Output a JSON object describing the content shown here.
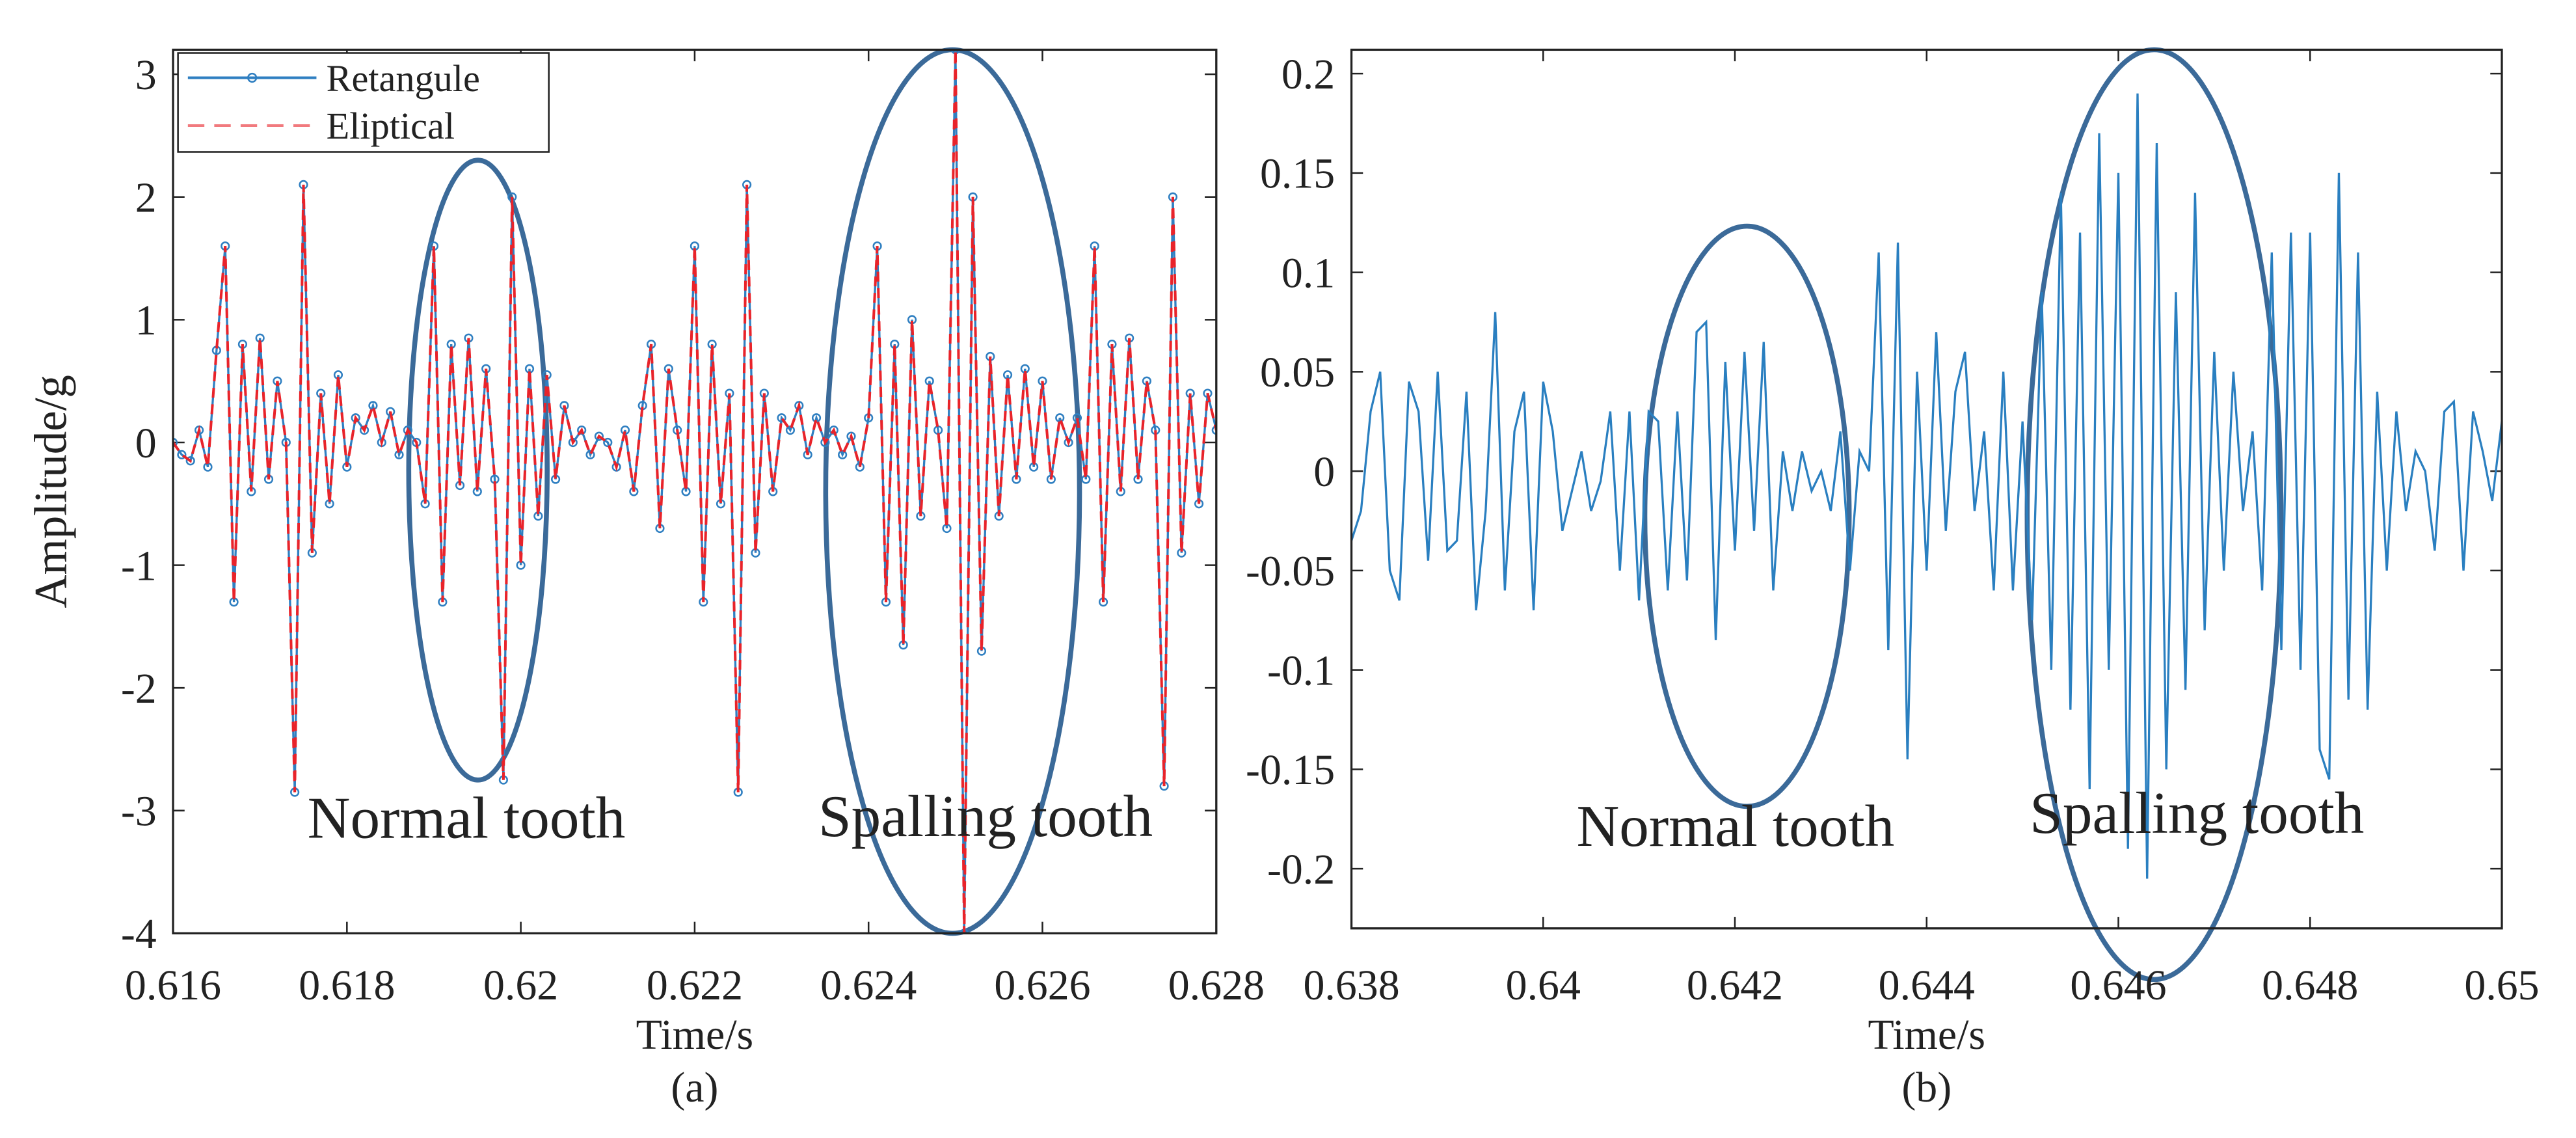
{
  "chart_data": [
    {
      "type": "line",
      "xlabel": "Time/s",
      "ylabel": "Amplitude/g",
      "caption": "(a)",
      "annotations": [
        "Normal tooth",
        "Spalling tooth"
      ],
      "legend": "upper left",
      "xlim": [
        0.616,
        0.628
      ],
      "xticks": [
        0.616,
        0.618,
        0.62,
        0.622,
        0.624,
        0.626,
        0.628
      ],
      "ylim": [
        -4,
        3.2
      ],
      "yticks": [
        -4,
        -3,
        -2,
        -1,
        0,
        1,
        2,
        3
      ],
      "x": [
        0.616,
        0.6161,
        0.6162,
        0.6163,
        0.6164,
        0.6165,
        0.6166,
        0.6167,
        0.6168,
        0.6169,
        0.617,
        0.6171,
        0.6172,
        0.6173,
        0.6174,
        0.6175,
        0.6176,
        0.6177,
        0.6178,
        0.6179,
        0.618,
        0.6181,
        0.6182,
        0.6183,
        0.6184,
        0.6185,
        0.6186,
        0.6187,
        0.6188,
        0.6189,
        0.619,
        0.6191,
        0.6192,
        0.6193,
        0.6194,
        0.6195,
        0.6196,
        0.6197,
        0.6198,
        0.6199,
        0.62,
        0.6201,
        0.6202,
        0.6203,
        0.6204,
        0.6205,
        0.6206,
        0.6207,
        0.6208,
        0.6209,
        0.621,
        0.6211,
        0.6212,
        0.6213,
        0.6214,
        0.6215,
        0.6216,
        0.6217,
        0.6218,
        0.6219,
        0.622,
        0.6221,
        0.6222,
        0.6223,
        0.6224,
        0.6225,
        0.6226,
        0.6227,
        0.6228,
        0.6229,
        0.623,
        0.6231,
        0.6232,
        0.6233,
        0.6234,
        0.6235,
        0.6236,
        0.6237,
        0.6238,
        0.6239,
        0.624,
        0.6241,
        0.6242,
        0.6243,
        0.6244,
        0.6245,
        0.6246,
        0.6247,
        0.6248,
        0.6249,
        0.625,
        0.6251,
        0.6252,
        0.6253,
        0.6254,
        0.6255,
        0.6256,
        0.6257,
        0.6258,
        0.6259,
        0.626,
        0.6261,
        0.6262,
        0.6263,
        0.6264,
        0.6265,
        0.6266,
        0.6267,
        0.6268,
        0.6269,
        0.627,
        0.6271,
        0.6272,
        0.6273,
        0.6274,
        0.6275,
        0.6276,
        0.6277,
        0.6278,
        0.6279,
        0.628
      ],
      "series": [
        {
          "name": "Retangule",
          "color": "#2f7fc1",
          "marker": "circle",
          "values": [
            0,
            -0.1,
            -0.15,
            0.1,
            -0.2,
            0.75,
            1.6,
            -1.3,
            0.8,
            -0.4,
            0.85,
            -0.3,
            0.5,
            0,
            -2.85,
            2.1,
            -0.9,
            0.4,
            -0.5,
            0.55,
            -0.2,
            0.2,
            0.1,
            0.3,
            0,
            0.25,
            -0.1,
            0.1,
            0,
            -0.5,
            1.6,
            -1.3,
            0.8,
            -0.35,
            0.85,
            -0.4,
            0.6,
            -0.3,
            -2.75,
            2.0,
            -1.0,
            0.6,
            -0.6,
            0.55,
            -0.3,
            0.3,
            0,
            0.1,
            -0.1,
            0.05,
            0,
            -0.2,
            0.1,
            -0.4,
            0.3,
            0.8,
            -0.7,
            0.6,
            0.1,
            -0.4,
            1.6,
            -1.3,
            0.8,
            -0.5,
            0.4,
            -2.85,
            2.1,
            -0.9,
            0.4,
            -0.4,
            0.2,
            0.1,
            0.3,
            -0.1,
            0.2,
            0,
            0.1,
            -0.1,
            0.05,
            -0.2,
            0.2,
            1.6,
            -1.3,
            0.8,
            -1.65,
            1.0,
            -0.6,
            0.5,
            0.1,
            -0.7,
            3.2,
            -4.0,
            2.0,
            -1.7,
            0.7,
            -0.6,
            0.55,
            -0.3,
            0.6,
            -0.2,
            0.5,
            -0.3,
            0.2,
            0,
            0.2,
            -0.3,
            1.6,
            -1.3,
            0.8,
            -0.4,
            0.85,
            -0.3,
            0.5,
            0.1,
            -2.8,
            2.0,
            -0.9,
            0.4,
            -0.5,
            0.4,
            0.1
          ]
        },
        {
          "name": "Eliptical",
          "color": "#e8232a",
          "dash": true,
          "values": [
            0,
            -0.1,
            -0.15,
            0.1,
            -0.2,
            0.75,
            1.6,
            -1.3,
            0.8,
            -0.4,
            0.85,
            -0.3,
            0.5,
            0,
            -2.85,
            2.1,
            -0.9,
            0.4,
            -0.5,
            0.55,
            -0.2,
            0.2,
            0.1,
            0.3,
            0,
            0.25,
            -0.1,
            0.1,
            0,
            -0.5,
            1.6,
            -1.3,
            0.8,
            -0.35,
            0.85,
            -0.4,
            0.6,
            -0.3,
            -2.75,
            2.0,
            -1.0,
            0.6,
            -0.6,
            0.55,
            -0.3,
            0.3,
            0,
            0.1,
            -0.1,
            0.05,
            0,
            -0.2,
            0.1,
            -0.4,
            0.3,
            0.8,
            -0.7,
            0.6,
            0.1,
            -0.4,
            1.6,
            -1.3,
            0.8,
            -0.5,
            0.4,
            -2.85,
            2.1,
            -0.9,
            0.4,
            -0.4,
            0.2,
            0.1,
            0.3,
            -0.1,
            0.2,
            0,
            0.1,
            -0.1,
            0.05,
            -0.2,
            0.2,
            1.6,
            -1.3,
            0.8,
            -1.65,
            1.0,
            -0.6,
            0.5,
            0.1,
            -0.7,
            3.2,
            -4.0,
            2.0,
            -1.7,
            0.7,
            -0.6,
            0.55,
            -0.3,
            0.6,
            -0.2,
            0.5,
            -0.3,
            0.2,
            0,
            0.2,
            -0.3,
            1.6,
            -1.3,
            0.8,
            -0.4,
            0.85,
            -0.3,
            0.5,
            0.1,
            -2.8,
            2.0,
            -0.9,
            0.4,
            -0.5,
            0.4,
            0.1
          ]
        }
      ]
    },
    {
      "type": "line",
      "xlabel": "Time/s",
      "caption": "(b)",
      "annotations": [
        "Normal tooth",
        "Spalling tooth"
      ],
      "xlim": [
        0.638,
        0.65
      ],
      "xticks": [
        0.638,
        0.64,
        0.642,
        0.644,
        0.646,
        0.648,
        0.65
      ],
      "ylim": [
        -0.23,
        0.212
      ],
      "yticks": [
        -0.2,
        -0.15,
        -0.1,
        -0.05,
        0,
        0.05,
        0.1,
        0.15,
        0.2
      ],
      "x": [
        0.638,
        0.6381,
        0.6382,
        0.6383,
        0.6384,
        0.6385,
        0.6386,
        0.6387,
        0.6388,
        0.6389,
        0.639,
        0.6391,
        0.6392,
        0.6393,
        0.6394,
        0.6395,
        0.6396,
        0.6397,
        0.6398,
        0.6399,
        0.64,
        0.6401,
        0.6402,
        0.6403,
        0.6404,
        0.6405,
        0.6406,
        0.6407,
        0.6408,
        0.6409,
        0.641,
        0.6411,
        0.6412,
        0.6413,
        0.6414,
        0.6415,
        0.6416,
        0.6417,
        0.6418,
        0.6419,
        0.642,
        0.6421,
        0.6422,
        0.6423,
        0.6424,
        0.6425,
        0.6426,
        0.6427,
        0.6428,
        0.6429,
        0.643,
        0.6431,
        0.6432,
        0.6433,
        0.6434,
        0.6435,
        0.6436,
        0.6437,
        0.6438,
        0.6439,
        0.644,
        0.6441,
        0.6442,
        0.6443,
        0.6444,
        0.6445,
        0.6446,
        0.6447,
        0.6448,
        0.6449,
        0.645,
        0.6451,
        0.6452,
        0.6453,
        0.6454,
        0.6455,
        0.6456,
        0.6457,
        0.6458,
        0.6459,
        0.646,
        0.6461,
        0.6462,
        0.6463,
        0.6464,
        0.6465,
        0.6466,
        0.6467,
        0.6468,
        0.6469,
        0.647,
        0.6471,
        0.6472,
        0.6473,
        0.6474,
        0.6475,
        0.6476,
        0.6477,
        0.6478,
        0.6479,
        0.648,
        0.6481,
        0.6482,
        0.6483,
        0.6484,
        0.6485,
        0.6486,
        0.6487,
        0.6488,
        0.6489,
        0.649,
        0.6491,
        0.6492,
        0.6493,
        0.6494,
        0.6495,
        0.6496,
        0.6497,
        0.6498,
        0.6499,
        0.65
      ],
      "series": [
        {
          "color": "#2a7fc0",
          "values": [
            -0.035,
            -0.02,
            0.03,
            0.05,
            -0.05,
            -0.065,
            0.045,
            0.03,
            -0.045,
            0.05,
            -0.04,
            -0.035,
            0.04,
            -0.07,
            -0.02,
            0.08,
            -0.06,
            0.02,
            0.04,
            -0.07,
            0.045,
            0.02,
            -0.03,
            -0.01,
            0.01,
            -0.02,
            -0.005,
            0.03,
            -0.05,
            0.03,
            -0.065,
            0.03,
            0.025,
            -0.06,
            0.03,
            -0.055,
            0.07,
            0.075,
            -0.085,
            0.055,
            -0.04,
            0.06,
            -0.03,
            0.065,
            -0.06,
            0.01,
            -0.02,
            0.01,
            -0.01,
            0,
            -0.02,
            0.02,
            -0.05,
            0.01,
            0,
            0.11,
            -0.09,
            0.115,
            -0.145,
            0.05,
            -0.05,
            0.07,
            -0.03,
            0.04,
            0.06,
            -0.02,
            0.02,
            -0.06,
            0.05,
            -0.06,
            0.025,
            -0.075,
            0.09,
            -0.1,
            0.14,
            -0.12,
            0.12,
            -0.16,
            0.17,
            -0.1,
            0.15,
            -0.19,
            0.19,
            -0.205,
            0.165,
            -0.15,
            0.09,
            -0.11,
            0.14,
            -0.08,
            0.06,
            -0.05,
            0.05,
            -0.02,
            0.02,
            -0.06,
            0.11,
            -0.09,
            0.12,
            -0.1,
            0.12,
            -0.14,
            -0.155,
            0.15,
            -0.115,
            0.11,
            -0.12,
            0.04,
            -0.05,
            0.03,
            -0.02,
            0.01,
            0,
            -0.04,
            0.03,
            0.035,
            -0.05,
            0.03,
            0.01,
            -0.015,
            0.025
          ]
        }
      ]
    }
  ]
}
